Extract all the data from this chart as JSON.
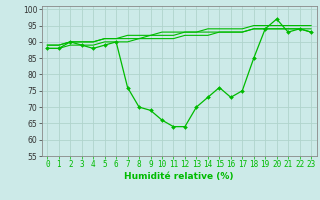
{
  "x": [
    0,
    1,
    2,
    3,
    4,
    5,
    6,
    7,
    8,
    9,
    10,
    11,
    12,
    13,
    14,
    15,
    16,
    17,
    18,
    19,
    20,
    21,
    22,
    23
  ],
  "line1": [
    88,
    88,
    90,
    89,
    88,
    89,
    90,
    76,
    70,
    69,
    66,
    64,
    64,
    70,
    73,
    76,
    73,
    75,
    85,
    94,
    97,
    93,
    94,
    93
  ],
  "line2": [
    89,
    89,
    90,
    90,
    90,
    91,
    91,
    91,
    91,
    92,
    92,
    92,
    93,
    93,
    93,
    93,
    93,
    93,
    94,
    94,
    94,
    94,
    94,
    94
  ],
  "line3": [
    89,
    89,
    90,
    90,
    90,
    91,
    91,
    92,
    92,
    92,
    93,
    93,
    93,
    93,
    94,
    94,
    94,
    94,
    95,
    95,
    95,
    95,
    95,
    95
  ],
  "line4": [
    88,
    88,
    89,
    89,
    89,
    90,
    90,
    90,
    91,
    91,
    91,
    91,
    92,
    92,
    92,
    93,
    93,
    93,
    94,
    94,
    94,
    94,
    94,
    93
  ],
  "bg_color": "#cceae8",
  "grid_color": "#b0d4cc",
  "line_color": "#00bb00",
  "xlabel": "Humidité relative (%)",
  "ylim": [
    55,
    101
  ],
  "yticks": [
    55,
    60,
    65,
    70,
    75,
    80,
    85,
    90,
    95,
    100
  ],
  "xticks": [
    0,
    1,
    2,
    3,
    4,
    5,
    6,
    7,
    8,
    9,
    10,
    11,
    12,
    13,
    14,
    15,
    16,
    17,
    18,
    19,
    20,
    21,
    22,
    23
  ],
  "xlabel_fontsize": 6.5,
  "tick_fontsize": 5.5
}
